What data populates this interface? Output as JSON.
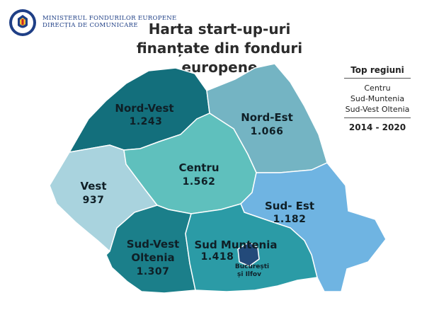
{
  "header": {
    "org_line1": "MINISTERUL FONDURILOR EUROPENE",
    "org_line2": "DIRECȚIA DE COMUNICARE",
    "emblem_text": "GUVERNUL ROMÂNIEI"
  },
  "title": {
    "line1": "Harta start-up-uri",
    "line2": "finanțate din fonduri europene"
  },
  "legend": {
    "heading": "Top regiuni",
    "items": [
      "Centru",
      "Sud-Muntenia",
      "Sud-Vest Oltenia"
    ],
    "period": "2014 - 2020"
  },
  "map": {
    "regions": [
      {
        "id": "nord-vest",
        "name": "Nord-Vest",
        "value": "1.243",
        "color": "#136f7c"
      },
      {
        "id": "nord-est",
        "name": "Nord-Est",
        "value": "1.066",
        "color": "#74b4c3"
      },
      {
        "id": "vest",
        "name": "Vest",
        "value": "937",
        "color": "#a9d3de"
      },
      {
        "id": "centru",
        "name": "Centru",
        "value": "1.562",
        "color": "#5fc0bd"
      },
      {
        "id": "sud-est",
        "name": "Sud- Est",
        "value": "1.182",
        "color": "#6fb4e2"
      },
      {
        "id": "sud-vest-oltenia",
        "name_line1": "Sud-Vest",
        "name_line2": "Oltenia",
        "value": "1.307",
        "color": "#1b7f8a"
      },
      {
        "id": "sud-muntenia",
        "name": "Sud Muntenia",
        "value": "1.418",
        "color": "#2b9ba6"
      },
      {
        "id": "bucuresti-ilfov",
        "name_line1": "București",
        "name_line2": "și Ilfov",
        "color": "#234a7a"
      }
    ]
  }
}
